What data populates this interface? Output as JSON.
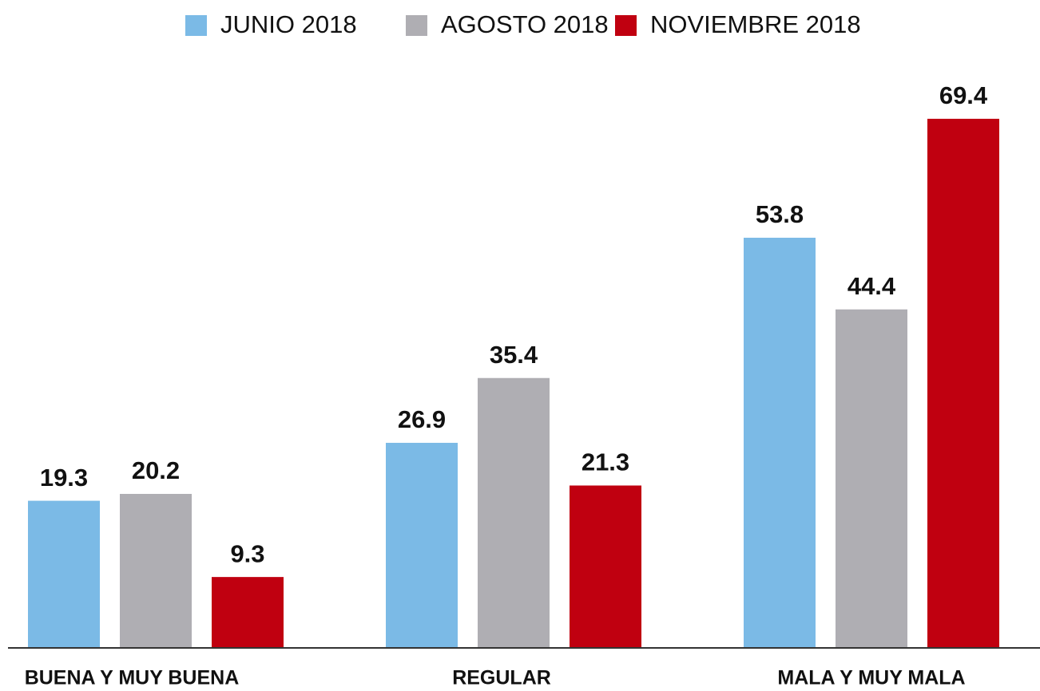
{
  "chart_data": {
    "type": "bar",
    "categories": [
      "BUENA Y MUY BUENA",
      "REGULAR",
      "MALA Y MUY MALA"
    ],
    "series": [
      {
        "name": "JUNIO 2018",
        "color": "#7bbae6",
        "values": [
          19.3,
          26.9,
          53.8
        ]
      },
      {
        "name": "AGOSTO 2018",
        "color": "#afaeb3",
        "values": [
          20.2,
          35.4,
          44.4
        ]
      },
      {
        "name": "NOVIEMBRE 2018",
        "color": "#c00010",
        "values": [
          9.3,
          21.3,
          69.4
        ]
      }
    ],
    "legend": "top"
  }
}
